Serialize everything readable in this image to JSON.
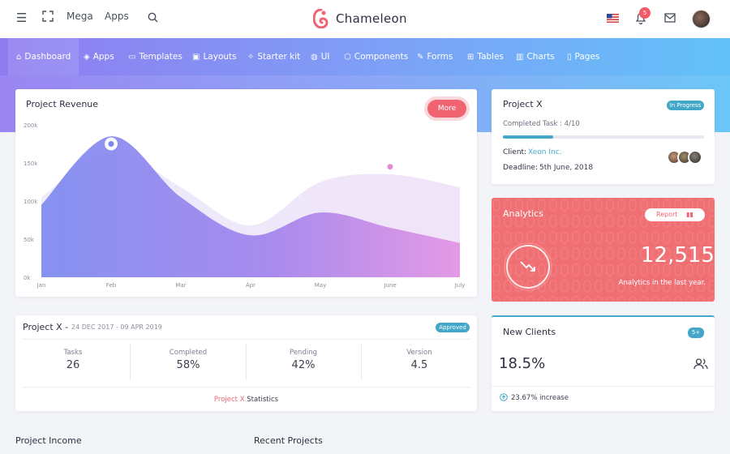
{
  "topbar": {
    "links": [
      "Mega",
      "Apps"
    ],
    "brand": "Chameleon",
    "notification_count": "5"
  },
  "nav": {
    "items": [
      {
        "label": "Dashboard",
        "icon": "home-icon"
      },
      {
        "label": "Apps",
        "icon": "layers-icon"
      },
      {
        "label": "Templates",
        "icon": "monitor-icon"
      },
      {
        "label": "Layouts",
        "icon": "layout-icon"
      },
      {
        "label": "Starter kit",
        "icon": "zap-icon"
      },
      {
        "label": "UI",
        "icon": "globe-icon"
      },
      {
        "label": "Components",
        "icon": "box-icon"
      },
      {
        "label": "Forms",
        "icon": "edit-icon"
      },
      {
        "label": "Tables",
        "icon": "grid-icon"
      },
      {
        "label": "Charts",
        "icon": "bar-chart-icon"
      },
      {
        "label": "Pages",
        "icon": "file-icon"
      }
    ]
  },
  "revenue": {
    "title": "Project Revenue",
    "more_label": "More"
  },
  "chart_data": {
    "type": "area",
    "title": "Project Revenue",
    "categories": [
      "Jan",
      "Feb",
      "Mar",
      "Apr",
      "May",
      "June",
      "July"
    ],
    "yticks": [
      "200k",
      "150k",
      "100k",
      "50k",
      "0k"
    ],
    "ylim": [
      0,
      200
    ],
    "series": [
      {
        "values": [
          105,
          165,
          118,
          68,
          125,
          135,
          118
        ],
        "color": "#ece8fb"
      },
      {
        "values": [
          95,
          185,
          105,
          55,
          85,
          65,
          45
        ],
        "color": "#8a86ee"
      }
    ],
    "markers": [
      {
        "category": "Feb",
        "value": 175,
        "color": "#7d86ec"
      },
      {
        "category": "June",
        "value": 145,
        "color": "#e58ad9"
      }
    ],
    "grid": false
  },
  "project_card": {
    "title": "Project X",
    "status": "In Progress",
    "completed_label": "Completed Task : 4/10",
    "progress": 0.25,
    "client_label": "Client:",
    "client_value": "Xeon Inc.",
    "deadline_label": "Deadline:",
    "deadline_value": "5th June, 2018"
  },
  "analytics": {
    "title": "Analytics",
    "report_label": "Report",
    "value": "12,515",
    "caption": "Analytics in the last year."
  },
  "projectx_stats": {
    "title": "Project X -",
    "dates": "24 DEC 2017 - 09 APR 2019",
    "badge": "Approved",
    "stats": [
      {
        "label": "Tasks",
        "value": "26"
      },
      {
        "label": "Completed",
        "value": "58%"
      },
      {
        "label": "Pending",
        "value": "42%"
      },
      {
        "label": "Version",
        "value": "4.5"
      }
    ],
    "footer_link": "Project X",
    "footer_text": "Statistics"
  },
  "new_clients": {
    "title": "New Clients",
    "badge": "5+",
    "percent": "18.5%",
    "increase": "23.67% increase"
  },
  "bottom": {
    "income_title": "Project Income",
    "recent_title": "Recent Projects"
  },
  "colors": {
    "accent": "#8a86ee",
    "info": "#43a7c9",
    "danger": "#f06472",
    "link": "#43a7c9"
  }
}
